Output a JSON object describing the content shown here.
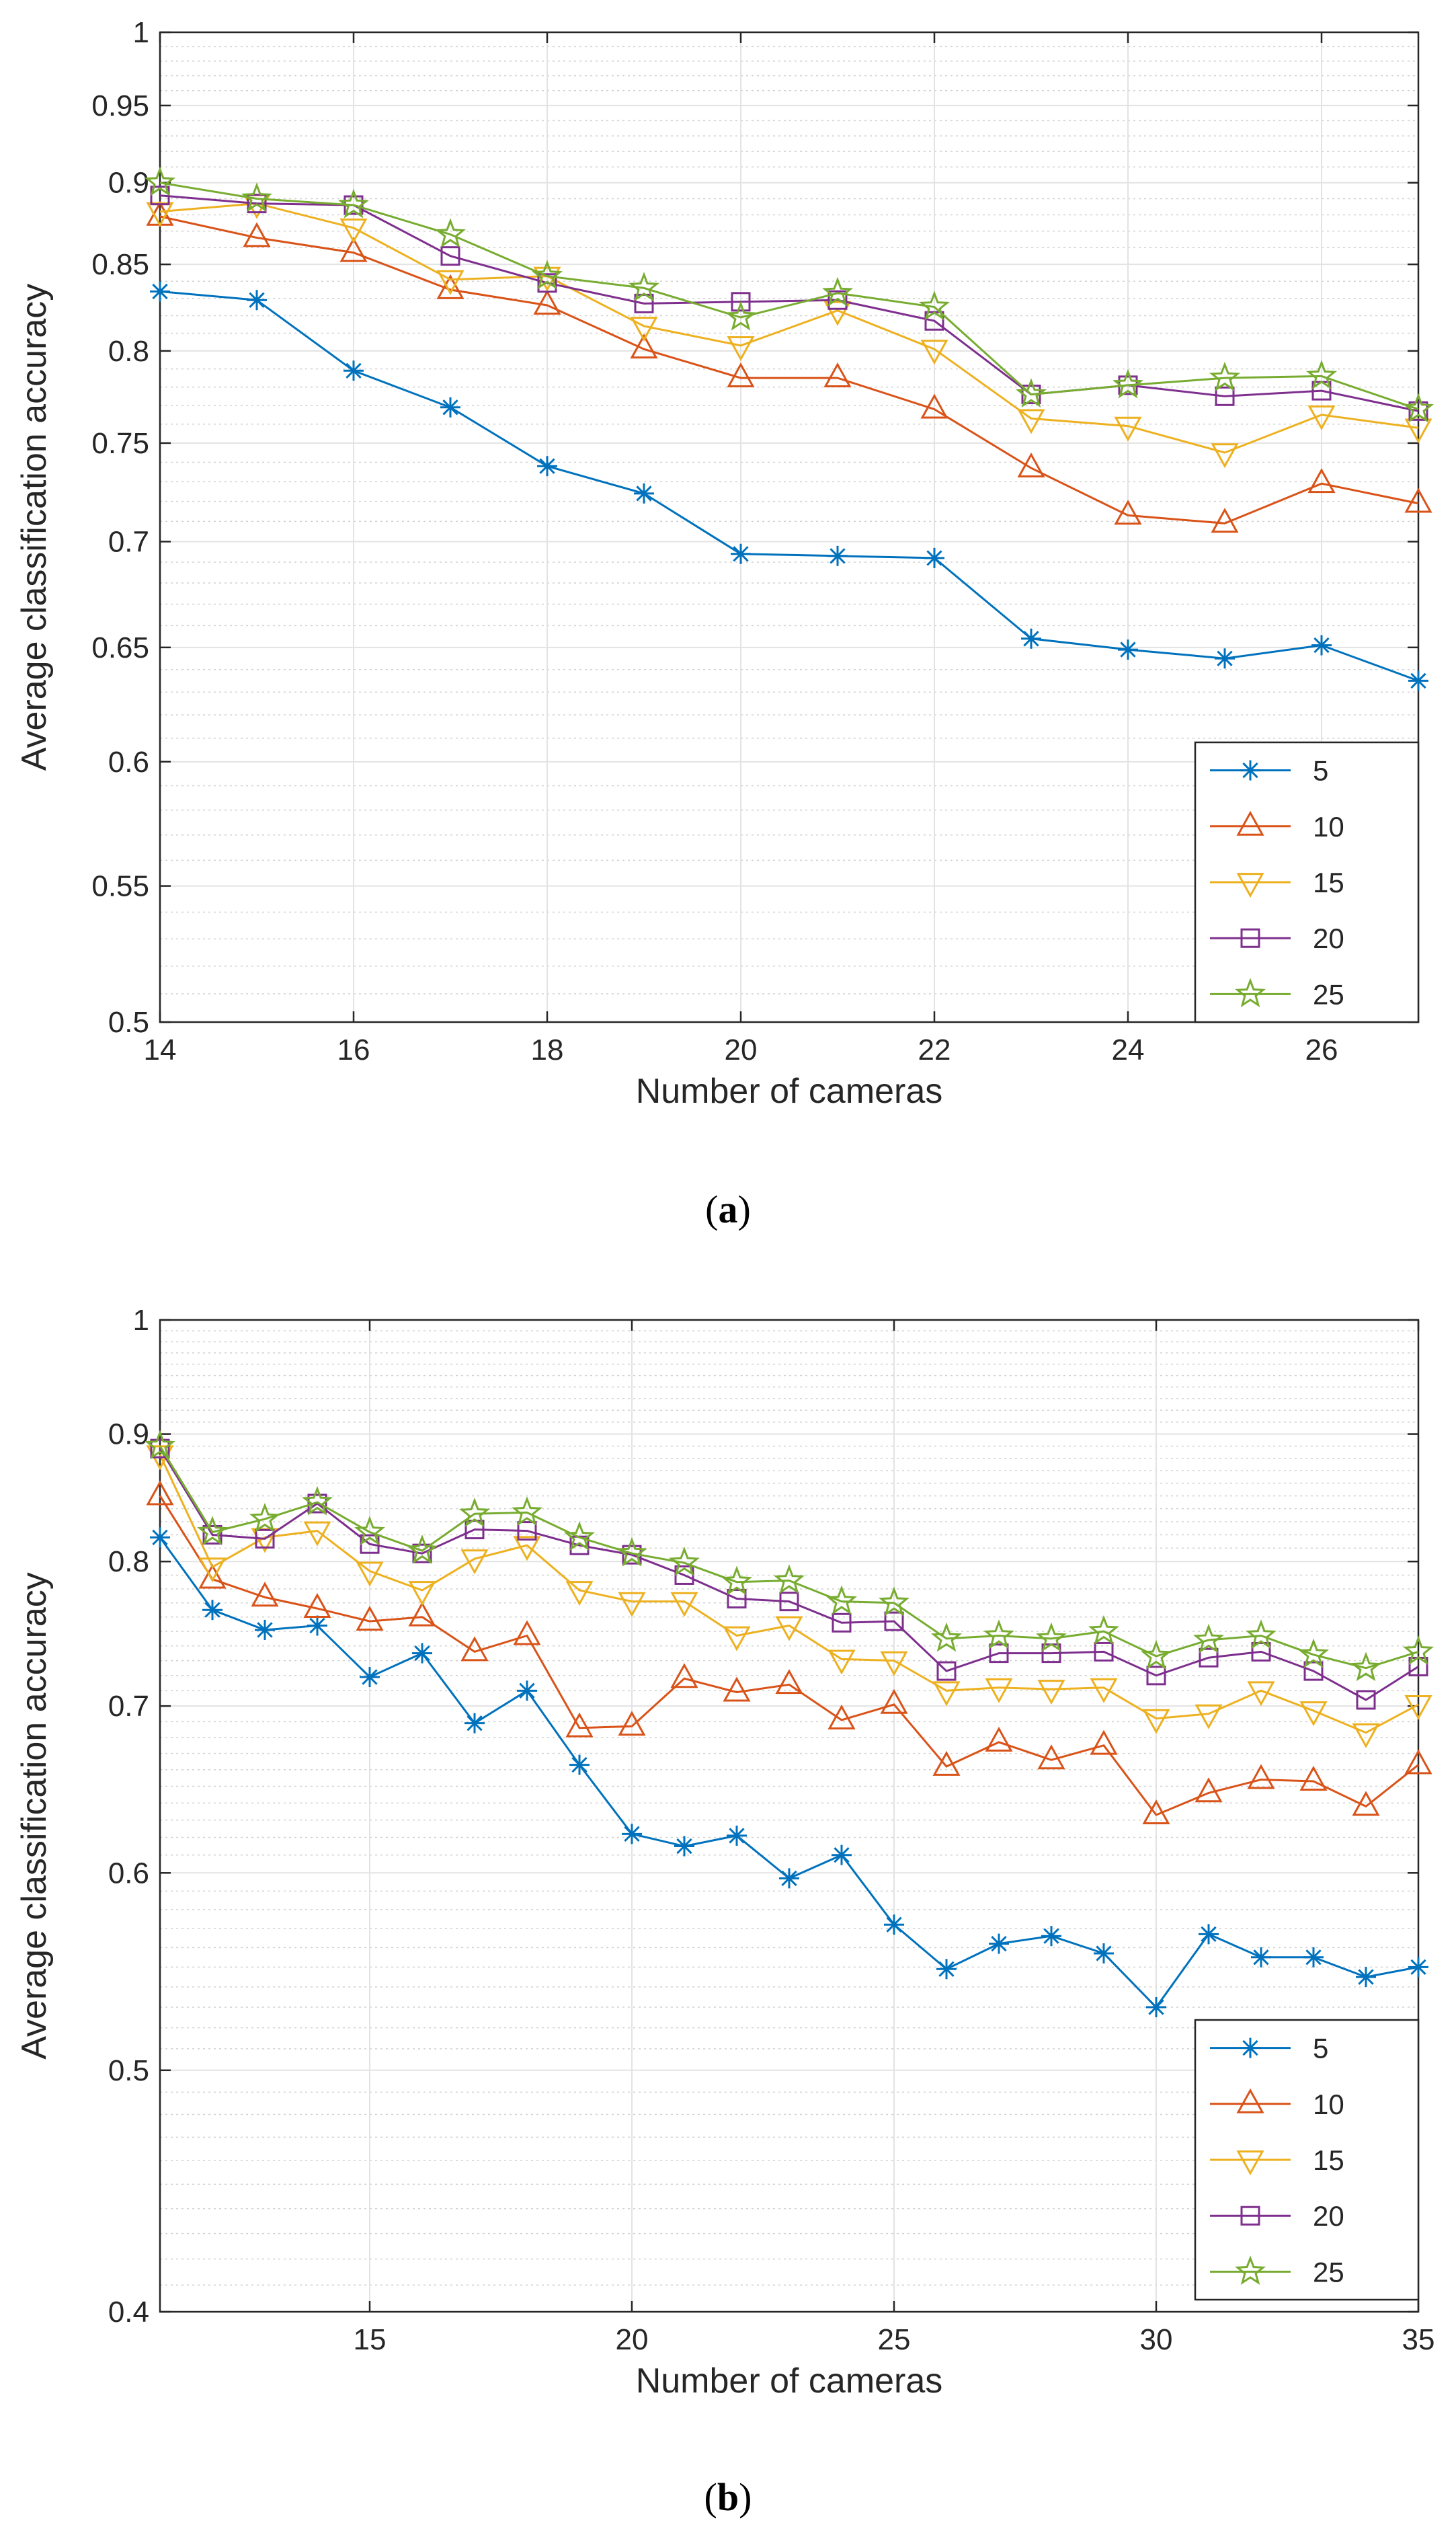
{
  "chart_data": [
    {
      "type": "line",
      "caption_letter": "a",
      "x": [
        14,
        15,
        16,
        17,
        18,
        19,
        20,
        21,
        22,
        23,
        24,
        25,
        26,
        27
      ],
      "xlim": [
        14,
        27
      ],
      "ylim": [
        0.5,
        1
      ],
      "yscale": "log",
      "x_ticks": [
        14,
        16,
        18,
        20,
        22,
        24,
        26
      ],
      "y_ticks": [
        0.5,
        0.55,
        0.6,
        0.65,
        0.7,
        0.75,
        0.8,
        0.85,
        0.9,
        0.95,
        1
      ],
      "x_tick_labels": [
        "14",
        "16",
        "18",
        "20",
        "22",
        "24",
        "26"
      ],
      "y_tick_labels": [
        "0.5",
        "0.55",
        "0.6",
        "0.65",
        "0.7",
        "0.75",
        "0.8",
        "0.85",
        "0.9",
        "0.95",
        "1"
      ],
      "xlabel": "Number of cameras",
      "ylabel": "Average classification accuracy",
      "grid": true,
      "legend_position": "bottom-right",
      "series": [
        {
          "name": "5",
          "color": "#0072BD",
          "marker": "asterisk",
          "values": [
            0.834,
            0.829,
            0.789,
            0.769,
            0.738,
            0.724,
            0.694,
            0.693,
            0.692,
            0.654,
            0.649,
            0.645,
            0.651,
            0.635
          ]
        },
        {
          "name": "10",
          "color": "#D95319",
          "marker": "triangle-up",
          "values": [
            0.879,
            0.866,
            0.857,
            0.835,
            0.826,
            0.801,
            0.785,
            0.785,
            0.768,
            0.737,
            0.713,
            0.709,
            0.729,
            0.719
          ]
        },
        {
          "name": "15",
          "color": "#EDB120",
          "marker": "triangle-down",
          "values": [
            0.882,
            0.887,
            0.872,
            0.841,
            0.843,
            0.814,
            0.803,
            0.823,
            0.801,
            0.763,
            0.759,
            0.745,
            0.765,
            0.758
          ]
        },
        {
          "name": "20",
          "color": "#7E2F8E",
          "marker": "square",
          "values": [
            0.892,
            0.887,
            0.886,
            0.855,
            0.839,
            0.827,
            0.828,
            0.829,
            0.817,
            0.776,
            0.781,
            0.775,
            0.778,
            0.767
          ]
        },
        {
          "name": "25",
          "color": "#77AC30",
          "marker": "pentagram",
          "values": [
            0.9,
            0.89,
            0.886,
            0.868,
            0.843,
            0.836,
            0.819,
            0.833,
            0.825,
            0.776,
            0.781,
            0.785,
            0.786,
            0.768
          ]
        }
      ]
    },
    {
      "type": "line",
      "caption_letter": "b",
      "x": [
        11,
        12,
        13,
        14,
        15,
        16,
        17,
        18,
        19,
        20,
        21,
        22,
        23,
        24,
        25,
        26,
        27,
        28,
        29,
        30,
        31,
        32,
        33,
        34,
        35
      ],
      "xlim": [
        11,
        35
      ],
      "ylim": [
        0.4,
        1
      ],
      "yscale": "log",
      "x_ticks": [
        15,
        20,
        25,
        30,
        35
      ],
      "y_ticks": [
        0.4,
        0.5,
        0.6,
        0.7,
        0.8,
        0.9,
        1
      ],
      "x_tick_labels": [
        "15",
        "20",
        "25",
        "30",
        "35"
      ],
      "y_tick_labels": [
        "0.4",
        "0.5",
        "0.6",
        "0.7",
        "0.8",
        "0.9",
        "1"
      ],
      "xlabel": "Number of cameras",
      "ylabel": "Average classification accuracy",
      "grid": true,
      "legend_position": "bottom-right",
      "series": [
        {
          "name": "5",
          "color": "#0072BD",
          "marker": "asterisk",
          "values": [
            0.818,
            0.765,
            0.751,
            0.754,
            0.719,
            0.735,
            0.689,
            0.71,
            0.663,
            0.622,
            0.615,
            0.621,
            0.597,
            0.61,
            0.572,
            0.549,
            0.562,
            0.566,
            0.557,
            0.53,
            0.567,
            0.555,
            0.555,
            0.545,
            0.55
          ]
        },
        {
          "name": "10",
          "color": "#D95319",
          "marker": "triangle-up",
          "values": [
            0.85,
            0.787,
            0.774,
            0.766,
            0.757,
            0.76,
            0.736,
            0.747,
            0.686,
            0.687,
            0.718,
            0.709,
            0.714,
            0.691,
            0.701,
            0.662,
            0.677,
            0.666,
            0.675,
            0.633,
            0.646,
            0.654,
            0.653,
            0.638,
            0.663
          ]
        },
        {
          "name": "15",
          "color": "#EDB120",
          "marker": "triangle-down",
          "values": [
            0.883,
            0.796,
            0.818,
            0.823,
            0.793,
            0.779,
            0.802,
            0.812,
            0.779,
            0.771,
            0.771,
            0.747,
            0.754,
            0.731,
            0.73,
            0.71,
            0.712,
            0.711,
            0.712,
            0.692,
            0.695,
            0.71,
            0.697,
            0.683,
            0.701
          ]
        },
        {
          "name": "20",
          "color": "#7E2F8E",
          "marker": "square",
          "values": [
            0.888,
            0.82,
            0.817,
            0.844,
            0.813,
            0.806,
            0.824,
            0.823,
            0.812,
            0.805,
            0.79,
            0.773,
            0.771,
            0.756,
            0.757,
            0.723,
            0.735,
            0.735,
            0.736,
            0.72,
            0.732,
            0.736,
            0.723,
            0.704,
            0.726
          ]
        },
        {
          "name": "25",
          "color": "#77AC30",
          "marker": "pentagram",
          "values": [
            0.89,
            0.822,
            0.832,
            0.845,
            0.822,
            0.808,
            0.836,
            0.837,
            0.818,
            0.806,
            0.799,
            0.785,
            0.786,
            0.771,
            0.77,
            0.745,
            0.747,
            0.745,
            0.75,
            0.733,
            0.744,
            0.747,
            0.734,
            0.725,
            0.736
          ]
        }
      ]
    }
  ]
}
